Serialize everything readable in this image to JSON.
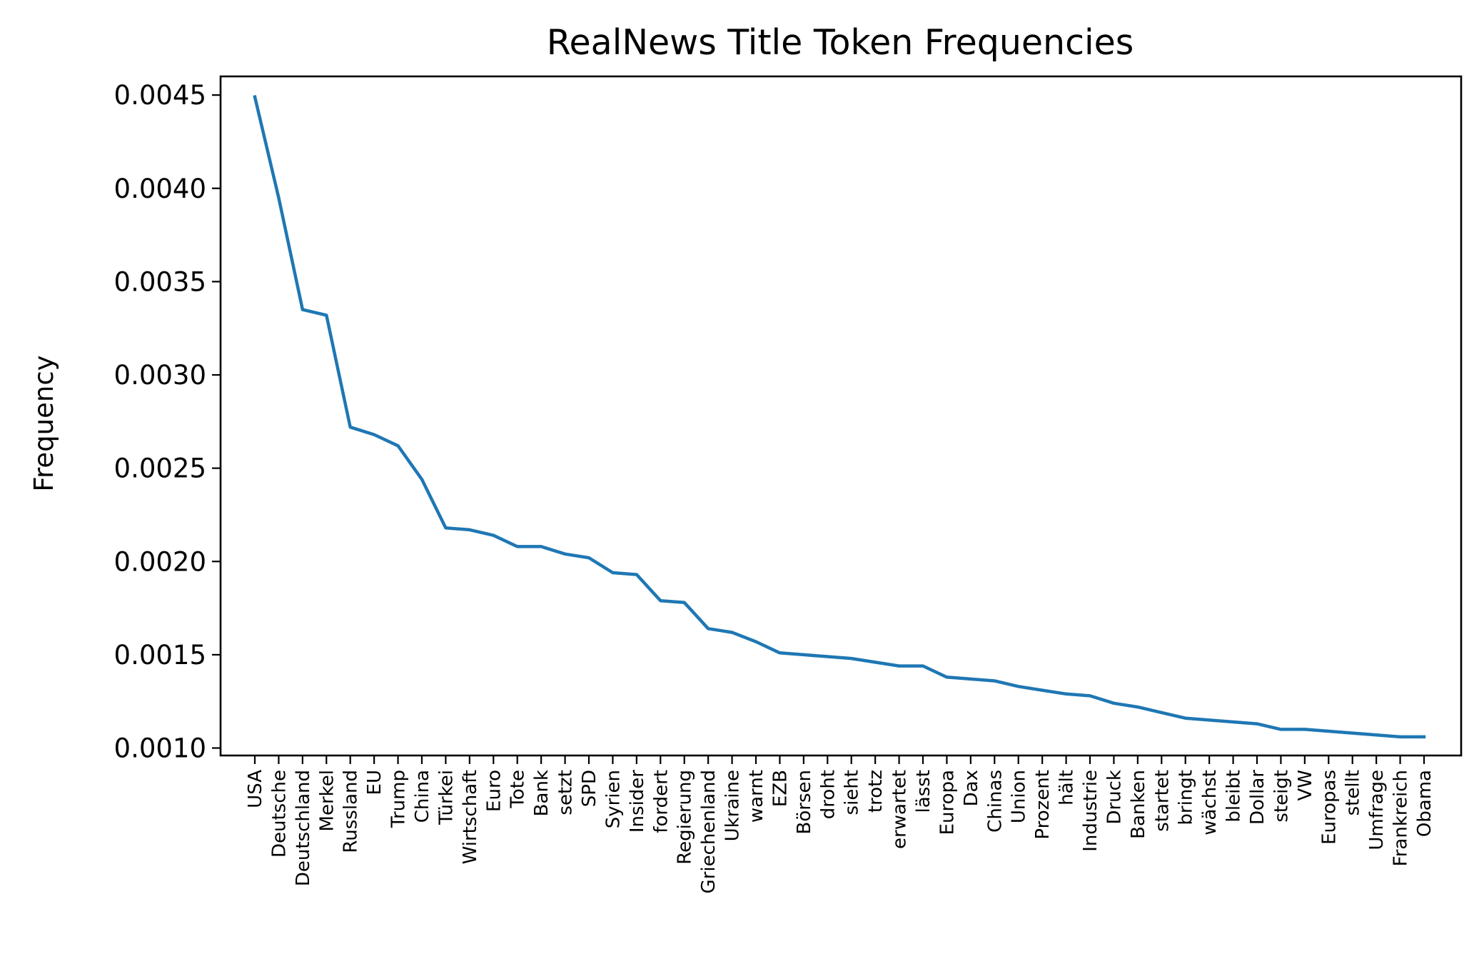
{
  "chart_data": {
    "type": "line",
    "title": "RealNews Title Token Frequencies",
    "xlabel": "",
    "ylabel": "Frequency",
    "ylim": [
      0.00096,
      0.0046
    ],
    "yticks": [
      "0.0010",
      "0.0015",
      "0.0020",
      "0.0025",
      "0.0030",
      "0.0035",
      "0.0040",
      "0.0045"
    ],
    "ytick_values": [
      0.001,
      0.0015,
      0.002,
      0.0025,
      0.003,
      0.0035,
      0.004,
      0.0045
    ],
    "grid": false,
    "line_color": "#1f77b4",
    "categories": [
      "USA",
      "Deutsche",
      "Deutschland",
      "Merkel",
      "Russland",
      "EU",
      "Trump",
      "China",
      "Türkei",
      "Wirtschaft",
      "Euro",
      "Tote",
      "Bank",
      "setzt",
      "SPD",
      "Syrien",
      "Insider",
      "fordert",
      "Regierung",
      "Griechenland",
      "Ukraine",
      "warnt",
      "EZB",
      "Börsen",
      "droht",
      "sieht",
      "trotz",
      "erwartet",
      "lässt",
      "Europa",
      "Dax",
      "Chinas",
      "Union",
      "Prozent",
      "hält",
      "Industrie",
      "Druck",
      "Banken",
      "startet",
      "bringt",
      "wächst",
      "bleibt",
      "Dollar",
      "steigt",
      "VW",
      "Europas",
      "stellt",
      "Umfrage",
      "Frankreich",
      "Obama"
    ],
    "values": [
      0.00449,
      0.00395,
      0.00335,
      0.00332,
      0.00272,
      0.00268,
      0.00262,
      0.00244,
      0.00218,
      0.00217,
      0.00214,
      0.00208,
      0.00208,
      0.00204,
      0.00202,
      0.00194,
      0.00193,
      0.00179,
      0.00178,
      0.00164,
      0.00162,
      0.00157,
      0.00151,
      0.0015,
      0.00149,
      0.00148,
      0.00146,
      0.00144,
      0.00144,
      0.00138,
      0.00137,
      0.00136,
      0.00133,
      0.00131,
      0.00129,
      0.00128,
      0.00124,
      0.00122,
      0.00119,
      0.00116,
      0.00115,
      0.00114,
      0.00113,
      0.0011,
      0.0011,
      0.00109,
      0.00108,
      0.00107,
      0.00106,
      0.00106
    ]
  }
}
